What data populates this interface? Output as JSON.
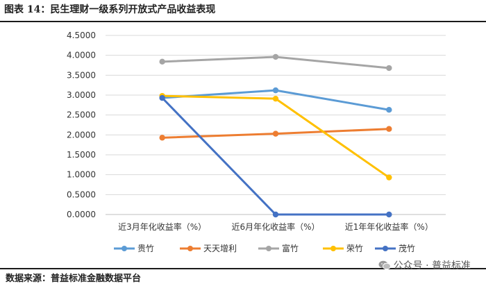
{
  "header": {
    "title": "图表 14：民生理财一级系列开放式产品收益表现"
  },
  "footer": {
    "source": "数据来源：普益标准金融数据平台",
    "watermark": "公众号 · 普益标准",
    "watermark_icon": "wechat-icon"
  },
  "chart_data": {
    "type": "line",
    "categories": [
      "近3月年化收益率（%）",
      "近6月年化收益率（%）",
      "近1年年化收益率（%）"
    ],
    "ylim": [
      0,
      4.5
    ],
    "ytick_step": 0.5,
    "ytick_labels": [
      "0.0000",
      "0.5000",
      "1.0000",
      "1.5000",
      "2.0000",
      "2.5000",
      "3.0000",
      "3.5000",
      "4.0000",
      "4.5000"
    ],
    "grid": true,
    "legend_position": "bottom",
    "series": [
      {
        "name": "贵竹",
        "color": "#5B9BD5",
        "values": [
          2.93,
          3.12,
          2.63
        ]
      },
      {
        "name": "天天增利",
        "color": "#ED7D31",
        "values": [
          1.93,
          2.03,
          2.15
        ]
      },
      {
        "name": "富竹",
        "color": "#A5A5A5",
        "values": [
          3.84,
          3.96,
          3.68
        ]
      },
      {
        "name": "荣竹",
        "color": "#FFC000",
        "values": [
          2.98,
          2.91,
          0.93
        ]
      },
      {
        "name": "茂竹",
        "color": "#4472C4",
        "values": [
          2.93,
          0.0,
          0.0
        ]
      }
    ]
  }
}
